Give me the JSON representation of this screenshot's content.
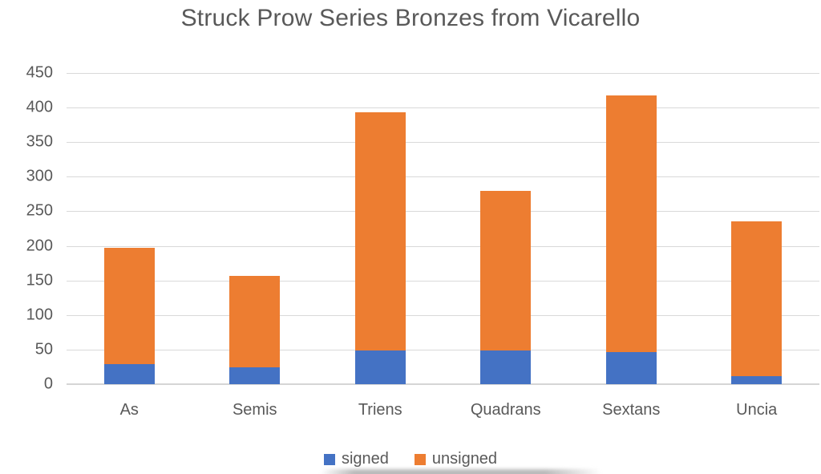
{
  "title": "Struck Prow Series Bronzes from Vicarello",
  "colors": {
    "signed": "#4472C4",
    "unsigned": "#ED7D31",
    "text": "#595959",
    "gridline": "#D9D9D9"
  },
  "chart_data": {
    "type": "bar",
    "stacked": true,
    "title": "Struck Prow Series Bronzes from Vicarello",
    "categories": [
      "As",
      "Semis",
      "Triens",
      "Quadrans",
      "Sextans",
      "Uncia"
    ],
    "series": [
      {
        "name": "signed",
        "color": "#4472C4",
        "values": [
          29,
          24,
          49,
          49,
          46,
          12
        ]
      },
      {
        "name": "unsigned",
        "color": "#ED7D31",
        "values": [
          168,
          133,
          344,
          231,
          371,
          223
        ]
      }
    ],
    "totals": [
      197,
      157,
      393,
      280,
      417,
      235
    ],
    "xlabel": "",
    "ylabel": "",
    "ylim": [
      0,
      450
    ],
    "ytick_step": 50,
    "yticks": [
      0,
      50,
      100,
      150,
      200,
      250,
      300,
      350,
      400,
      450
    ],
    "grid": true,
    "legend_position": "bottom",
    "legend": [
      "signed",
      "unsigned"
    ]
  }
}
